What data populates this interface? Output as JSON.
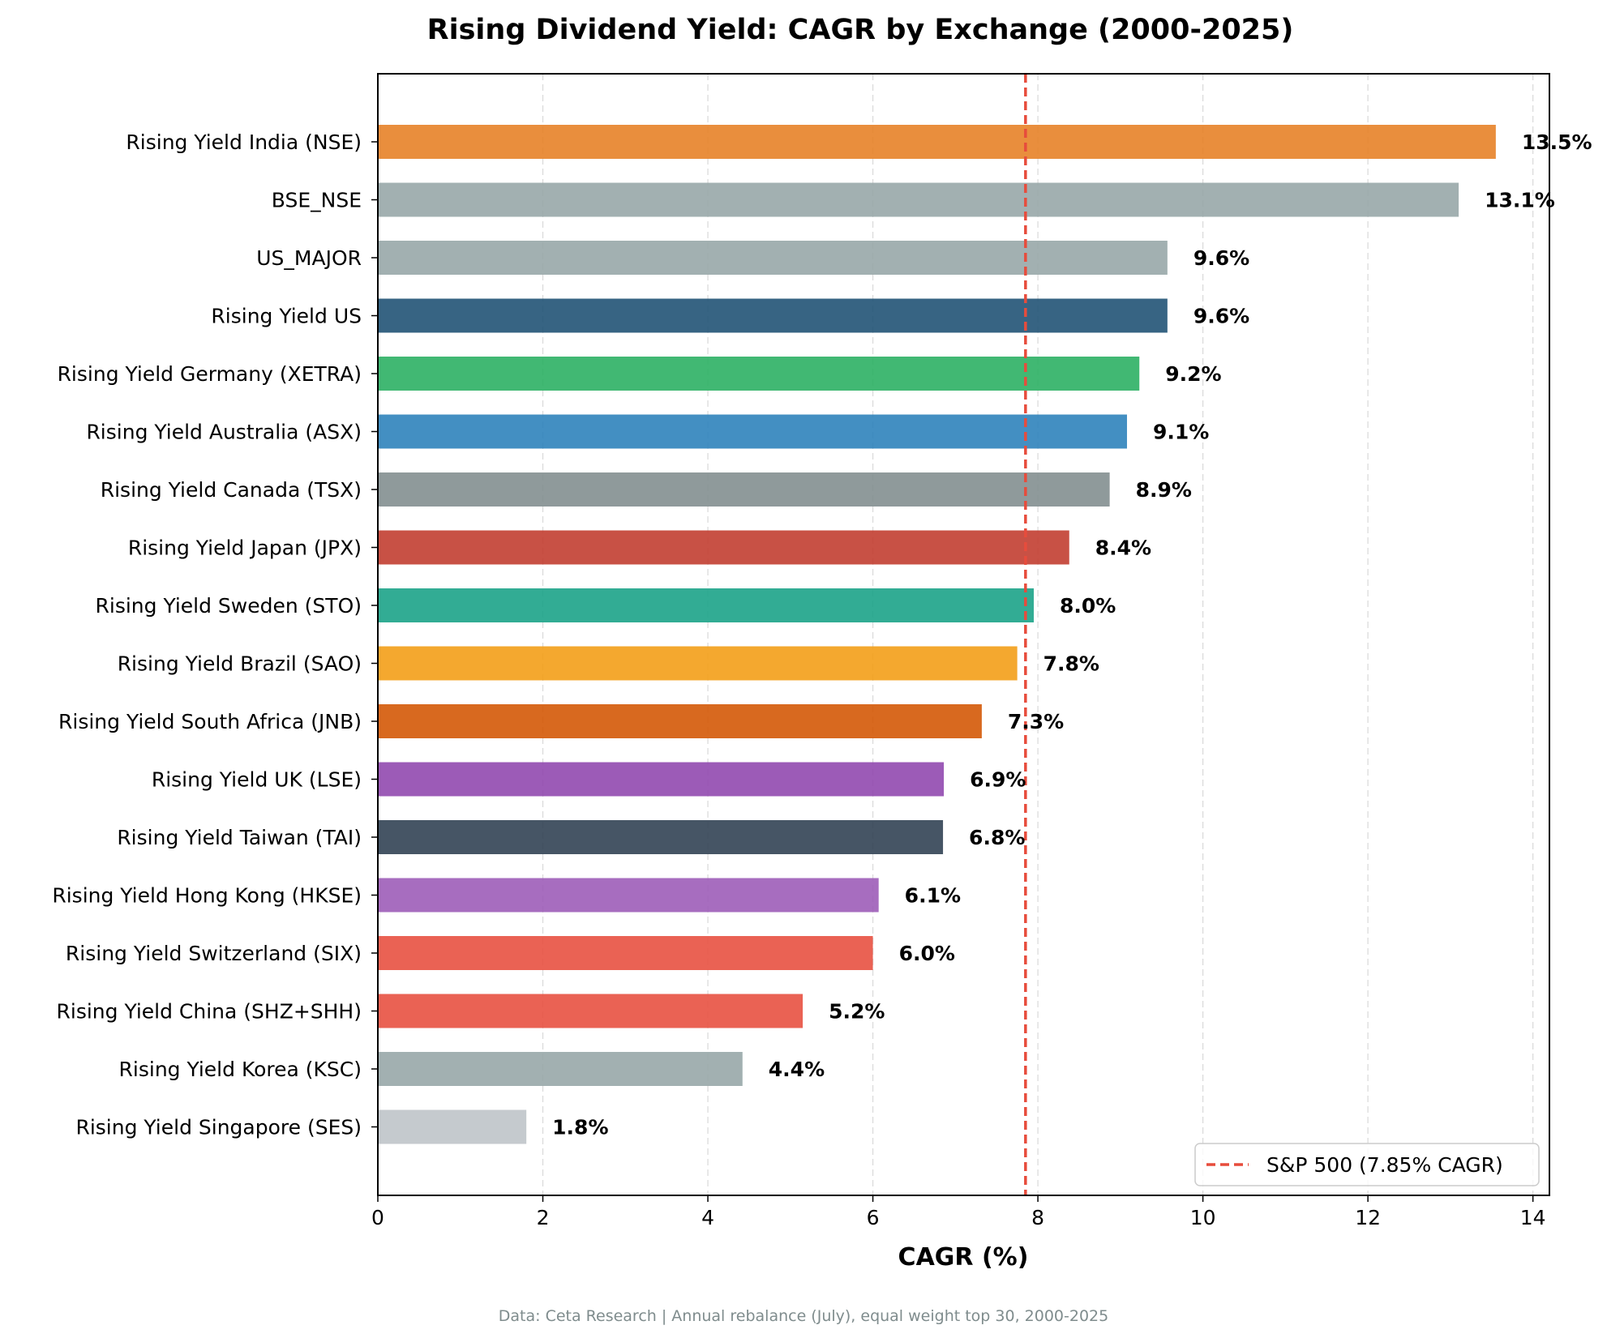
{
  "chart_data": {
    "type": "bar",
    "orientation": "horizontal",
    "title": "Rising Dividend Yield: CAGR by Exchange (2000-2025)",
    "xlabel": "CAGR (%)",
    "ylabel": "",
    "xlim": [
      0,
      14.2
    ],
    "xticks": [
      0,
      2,
      4,
      6,
      8,
      10,
      12,
      14
    ],
    "grid": "x-dashed",
    "legend_position": "lower-right",
    "footnote": "Data: Ceta Research | Annual rebalance (July), equal weight top 30, 2000-2025",
    "reference_line": {
      "name": "S&P 500 (7.85% CAGR)",
      "value": 7.85,
      "color": "#e74c3c",
      "style": "dashed"
    },
    "categories": [
      "Rising Yield India (NSE)",
      "BSE_NSE",
      "US_MAJOR",
      "Rising Yield US",
      "Rising Yield Germany (XETRA)",
      "Rising Yield Australia (ASX)",
      "Rising Yield Canada (TSX)",
      "Rising Yield Japan (JPX)",
      "Rising Yield Sweden (STO)",
      "Rising Yield Brazil (SAO)",
      "Rising Yield South Africa (JNB)",
      "Rising Yield UK (LSE)",
      "Rising Yield Taiwan (TAI)",
      "Rising Yield Hong Kong (HKSE)",
      "Rising Yield Switzerland (SIX)",
      "Rising Yield China (SHZ+SHH)",
      "Rising Yield Korea (KSC)",
      "Rising Yield Singapore (SES)"
    ],
    "values": [
      13.55,
      13.1,
      9.57,
      9.57,
      9.23,
      9.08,
      8.87,
      8.38,
      7.95,
      7.75,
      7.32,
      6.86,
      6.85,
      6.07,
      6.0,
      5.15,
      4.42,
      1.8
    ],
    "value_labels": [
      "13.5%",
      "13.1%",
      "9.6%",
      "9.6%",
      "9.2%",
      "9.1%",
      "8.9%",
      "8.4%",
      "8.0%",
      "7.8%",
      "7.3%",
      "6.9%",
      "6.8%",
      "6.1%",
      "6.0%",
      "5.2%",
      "4.4%",
      "1.8%"
    ],
    "colors": [
      "#e67e22",
      "#95a5a6",
      "#95a5a6",
      "#1b4f72",
      "#27ae60",
      "#2980b9",
      "#7f8c8d",
      "#c0392b",
      "#16a085",
      "#f39c12",
      "#d35400",
      "#8e44ad",
      "#2c3e50",
      "#9b59b6",
      "#e74c3c",
      "#e74c3c",
      "#95a5a6",
      "#bdc3c7"
    ]
  }
}
